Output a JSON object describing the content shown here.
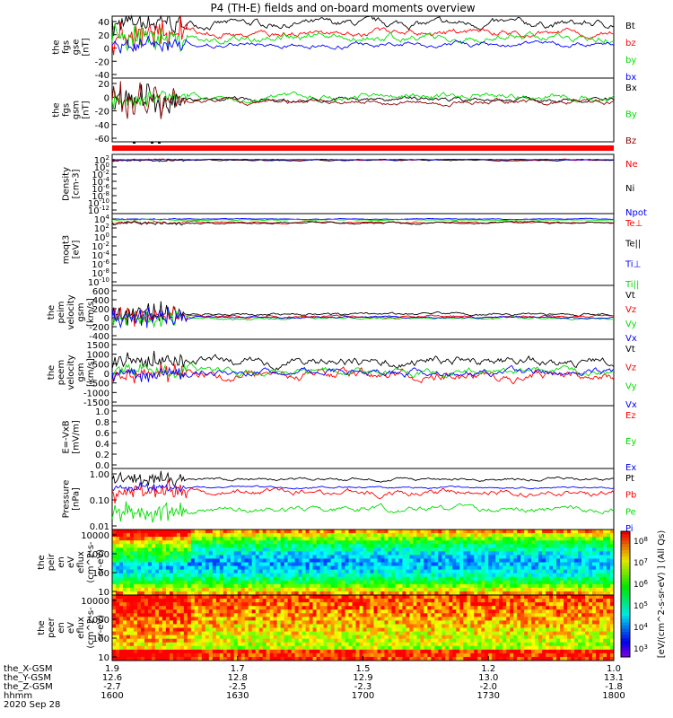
{
  "title": "P4 (TH-E) fields and on-board moments overview",
  "date": "2020 Sep 28",
  "xaxis": {
    "tick_labels": [
      "1600",
      "1630",
      "1700",
      "1730",
      "1800"
    ],
    "rows": [
      {
        "name": "the_X-GSM",
        "values": [
          "1.9",
          "1.7",
          "1.5",
          "1.2",
          "1.0"
        ]
      },
      {
        "name": "the_Y-GSM",
        "values": [
          "12.6",
          "12.8",
          "12.9",
          "13.0",
          "13.1"
        ]
      },
      {
        "name": "the_Z-GSM",
        "values": [
          "-2.7",
          "-2.5",
          "-2.3",
          "-2.0",
          "-1.8"
        ]
      },
      {
        "name": "hhmm",
        "values": [
          "1600",
          "1630",
          "1700",
          "1730",
          "1800"
        ]
      }
    ]
  },
  "colors": {
    "black": "#000000",
    "red": "#ff0000",
    "green": "#00dd00",
    "blue": "#0000ff"
  },
  "chart_data": [
    {
      "type": "line",
      "id": "fgs-gse",
      "ylabel": [
        "the",
        "fgs",
        "gse",
        "[nT]"
      ],
      "ylim": [
        -40,
        40
      ],
      "ticks": [
        "40",
        "20",
        "0",
        "-20",
        "-40"
      ],
      "series": [
        {
          "name": "Bt",
          "color": "#000000",
          "base": 30,
          "amp": 6,
          "early": 20
        },
        {
          "name": "bz",
          "color": "#ff0000",
          "base": 18,
          "amp": 5,
          "early": 25
        },
        {
          "name": "by",
          "color": "#00dd00",
          "base": 12,
          "amp": 6,
          "early": 20
        },
        {
          "name": "bx",
          "color": "#0000ff",
          "base": 3,
          "amp": 4,
          "early": 10
        }
      ]
    },
    {
      "type": "line",
      "id": "fgs-gsm",
      "ylabel": [
        "the",
        "fgs",
        "gsm",
        "[nT]"
      ],
      "ylim": [
        -70,
        40
      ],
      "ticks": [
        "20",
        "0",
        "-20",
        "-40",
        "-60"
      ],
      "series": [
        {
          "name": "Bx",
          "color": "#000000",
          "base": 3,
          "amp": 5,
          "early": 30
        },
        {
          "name": "By",
          "color": "#00dd00",
          "base": 8,
          "amp": 7,
          "early": 20
        },
        {
          "name": "Bz",
          "color": "#8b0000",
          "base": -1,
          "amp": 5,
          "early": 35
        }
      ]
    },
    {
      "type": "line",
      "id": "density",
      "ylabel": [
        "Density",
        "[cm-3]"
      ],
      "scale": "log",
      "ylim": [
        -14,
        3
      ],
      "ticks": [
        "10^2",
        "10^0",
        "10^-2",
        "10^-4",
        "10^-6",
        "10^-8",
        "10^-10",
        "10^-12"
      ],
      "series": [
        {
          "name": "Ne",
          "color": "#ff0000",
          "base": 1.4,
          "amp": 0.2,
          "early": 0.3
        },
        {
          "name": "Ni",
          "color": "#000000",
          "base": 1.3,
          "amp": 0.2,
          "early": 0.3
        },
        {
          "name": "Npot",
          "color": "#0000ff",
          "base": 1.5,
          "amp": 0.1,
          "early": 0.1
        }
      ]
    },
    {
      "type": "line",
      "id": "temperature",
      "ylabel": [
        "moqt3",
        "[eV]"
      ],
      "scale": "log",
      "ylim": [
        -11,
        5
      ],
      "ticks": [
        "10^4",
        "10^2",
        "10^0",
        "10^-2",
        "10^-4",
        "10^-6",
        "10^-8",
        "10^-10"
      ],
      "series": [
        {
          "name": "Te⊥",
          "color": "#ff0000",
          "base": 3.0,
          "amp": 0.25,
          "early": 0.4
        },
        {
          "name": "Te||",
          "color": "#000000",
          "base": 2.9,
          "amp": 0.25,
          "early": 0.4
        },
        {
          "name": "Ti⊥",
          "color": "#0000ff",
          "base": 3.8,
          "amp": 0.1,
          "early": 0.1
        },
        {
          "name": "Ti||",
          "color": "#00dd00",
          "base": 3.6,
          "amp": 0.1,
          "early": 0.1
        }
      ]
    },
    {
      "type": "line",
      "id": "peim-velocity",
      "ylabel": [
        "the",
        "peim",
        "velocity",
        "gsm",
        "[km/s]"
      ],
      "ylim": [
        -400,
        600
      ],
      "ticks": [
        "600",
        "400",
        "200",
        "0",
        "-200",
        "-400"
      ],
      "series": [
        {
          "name": "Vt",
          "color": "#000000",
          "base": 60,
          "amp": 30,
          "early": 250
        },
        {
          "name": "Vz",
          "color": "#ff0000",
          "base": 20,
          "amp": 25,
          "early": 220
        },
        {
          "name": "Vy",
          "color": "#00dd00",
          "base": -10,
          "amp": 25,
          "early": 180
        },
        {
          "name": "Vx",
          "color": "#0000ff",
          "base": 5,
          "amp": 20,
          "early": 220
        }
      ]
    },
    {
      "type": "line",
      "id": "peem-velocity",
      "ylabel": [
        "the",
        "peem",
        "velocity",
        "gsm",
        "[km/s]"
      ],
      "ylim": [
        -1500,
        1500
      ],
      "ticks": [
        "1500",
        "1000",
        "500",
        "0",
        "-500",
        "-1000",
        "-1500"
      ],
      "series": [
        {
          "name": "Vt",
          "color": "#000000",
          "base": 500,
          "amp": 250,
          "early": 400
        },
        {
          "name": "Vz",
          "color": "#ff0000",
          "base": -100,
          "amp": 280,
          "early": 400
        },
        {
          "name": "Vy",
          "color": "#00dd00",
          "base": 50,
          "amp": 200,
          "early": 300
        },
        {
          "name": "Vx",
          "color": "#0000ff",
          "base": 0,
          "amp": 200,
          "early": 400
        }
      ]
    },
    {
      "type": "empty",
      "id": "e-field",
      "ylabel": [
        "E=-VxB",
        "[mV/m]"
      ],
      "ylim": [
        0,
        1
      ],
      "ticks": [
        "1.0",
        "0.8",
        "0.6",
        "0.4",
        "0.2",
        "0.0"
      ],
      "series": [
        {
          "name": "Ez",
          "color": "#ff0000"
        },
        {
          "name": "Ey",
          "color": "#00dd00"
        },
        {
          "name": "Ex",
          "color": "#0000ff"
        }
      ]
    },
    {
      "type": "line",
      "id": "pressure",
      "ylabel": [
        "Pressure",
        "[nPa]"
      ],
      "scale": "log",
      "ylim": [
        -2,
        0
      ],
      "ticks": [
        "1.00",
        "0.10",
        "0.01"
      ],
      "series": [
        {
          "name": "Pt",
          "color": "#000000",
          "base": -0.35,
          "amp": 0.06,
          "early": 0.25
        },
        {
          "name": "Pb",
          "color": "#ff0000",
          "base": -0.78,
          "amp": 0.12,
          "early": 0.35
        },
        {
          "name": "Pe",
          "color": "#00dd00",
          "base": -1.35,
          "amp": 0.12,
          "early": 0.4
        },
        {
          "name": "Pi",
          "color": "#0000ff",
          "base": -0.62,
          "amp": 0.04,
          "early": 0.15
        }
      ]
    },
    {
      "type": "heatmap",
      "id": "peir-eflux",
      "ylabel": [
        "the",
        "peir",
        "en",
        "eV",
        "eflux",
        "(cm^2-s-",
        "sr-eV)"
      ],
      "ylim": [
        5,
        20000
      ],
      "ticks": [
        "10000",
        "1000",
        "100",
        "10"
      ]
    },
    {
      "type": "heatmap",
      "id": "peer-eflux",
      "ylabel": [
        "the",
        "peer",
        "en",
        "eV",
        "eflux",
        "(cm^2-s-",
        "sr-eV)"
      ],
      "ylim": [
        5,
        20000
      ],
      "ticks": [
        "10000",
        "1000",
        "100",
        "10"
      ]
    }
  ],
  "colorbar": {
    "label": "[eV/(cm^2-s-sr-eV) ] (All Qs)",
    "ticks": [
      "10^8",
      "10^7",
      "10^6",
      "10^5",
      "10^4",
      "10^3"
    ]
  }
}
